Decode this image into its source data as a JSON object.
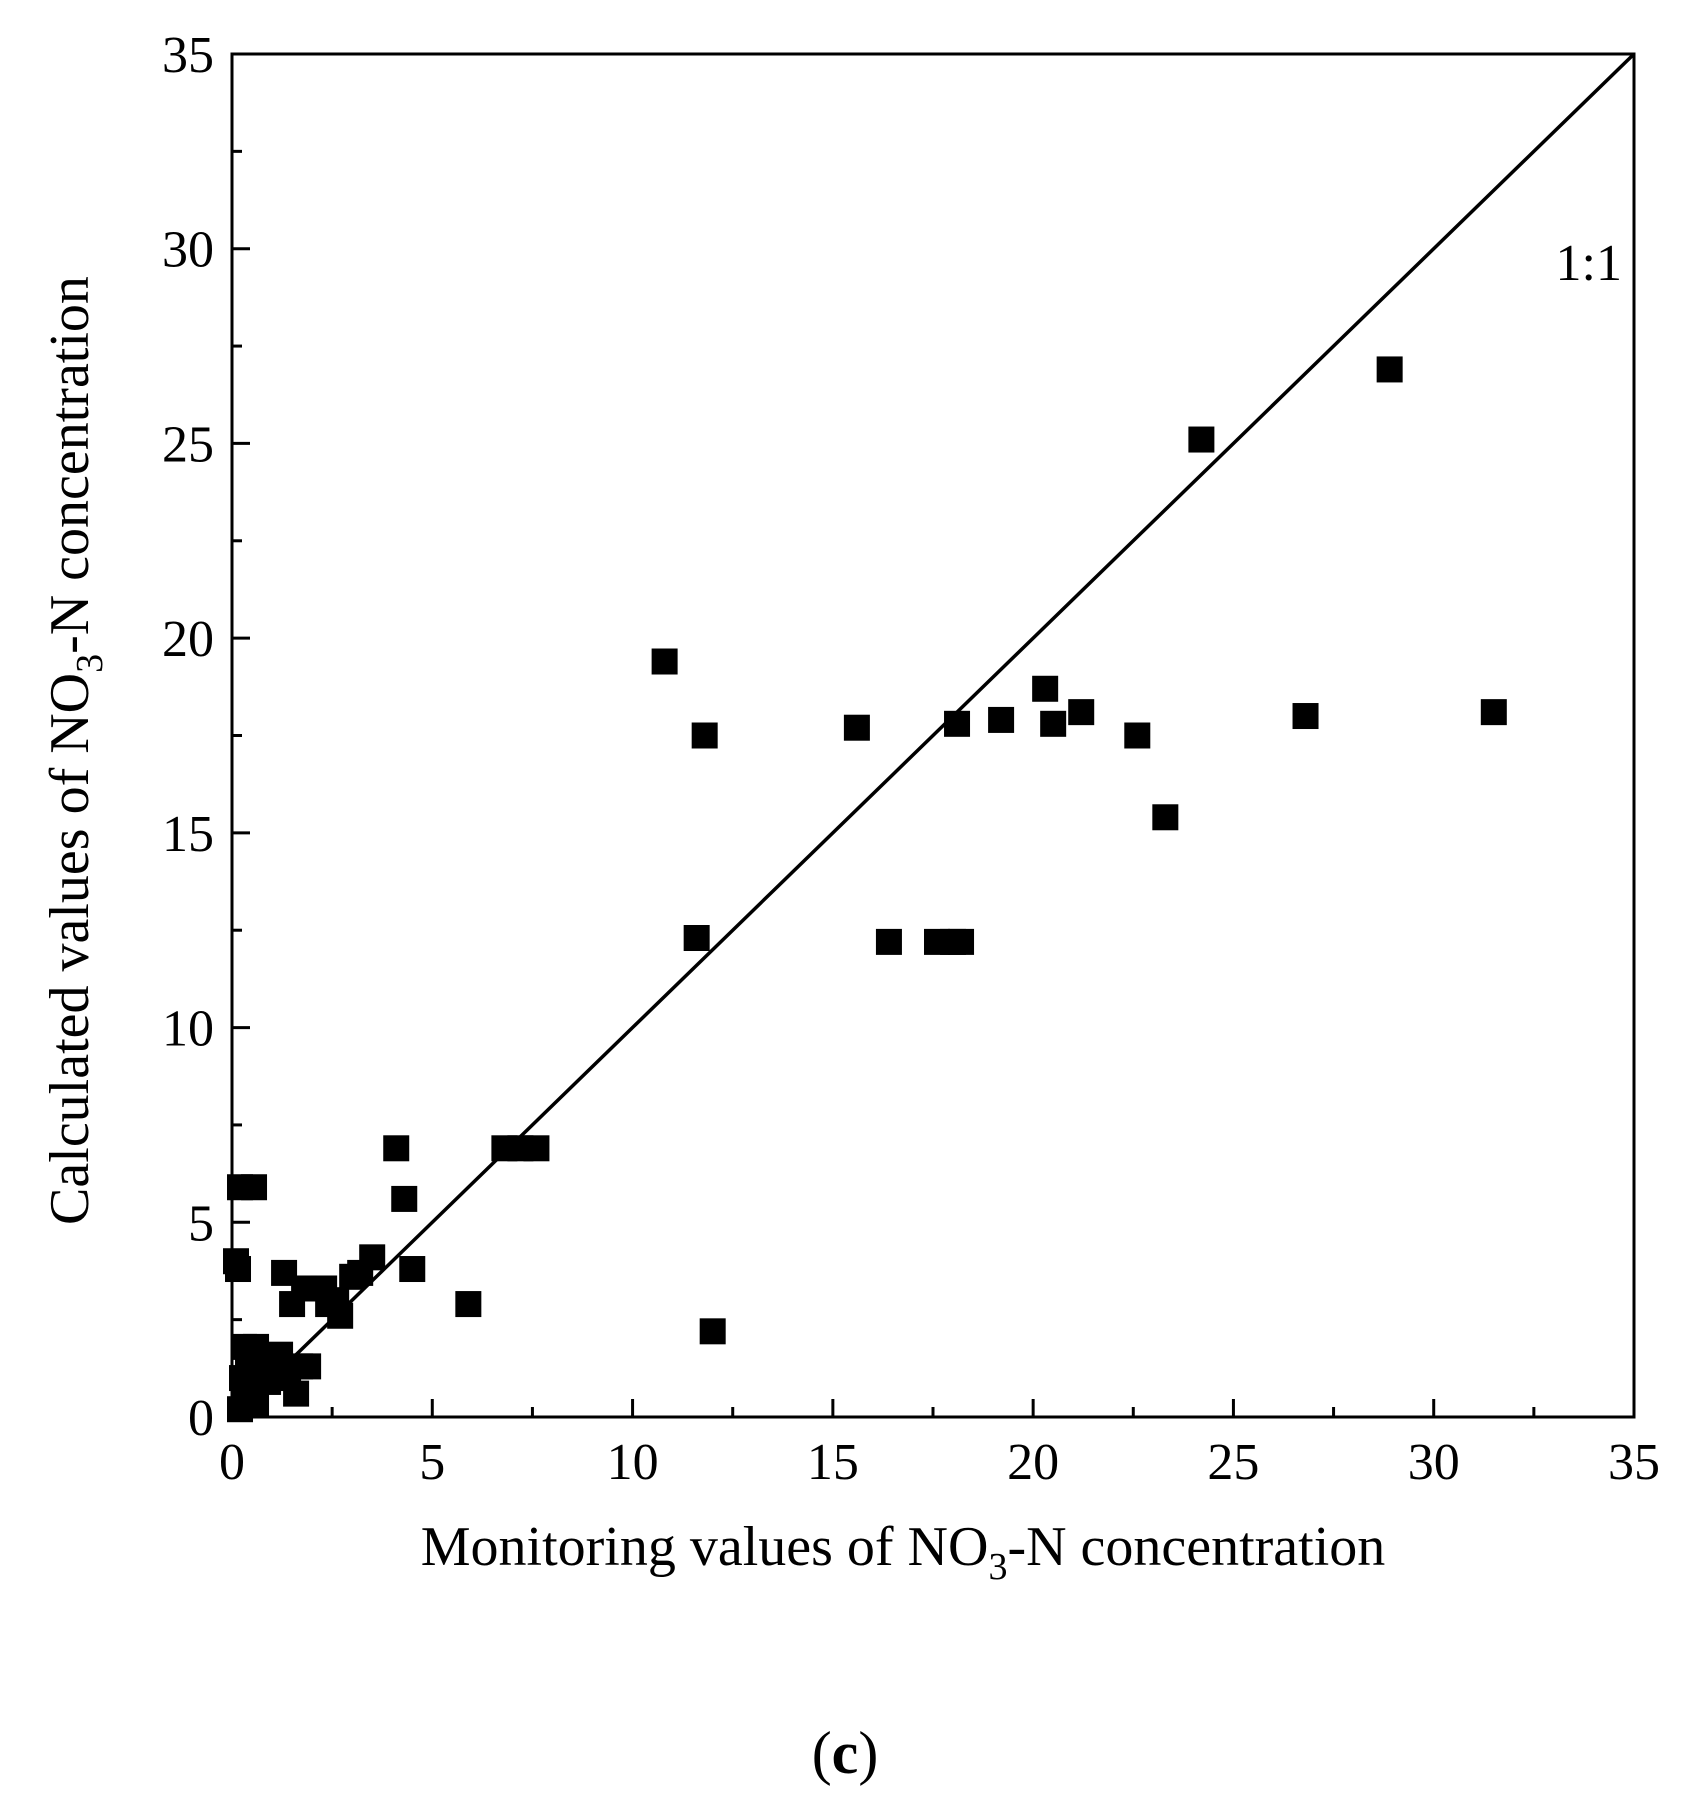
{
  "chart_data": {
    "type": "scatter",
    "title": "",
    "panel_label": {
      "open": "(",
      "letter": "c",
      "close": ")"
    },
    "xlabel": {
      "pre": "Monitoring values of NO",
      "sub": "3",
      "post": "-N concentration"
    },
    "ylabel": {
      "pre": "Calculated values of NO",
      "sub": "3",
      "post": "-N concentration"
    },
    "xlim": [
      0,
      35
    ],
    "ylim": [
      0,
      35
    ],
    "x_ticks": [
      0,
      5,
      10,
      15,
      20,
      25,
      30,
      35
    ],
    "y_ticks": [
      0,
      5,
      10,
      15,
      20,
      25,
      30,
      35
    ],
    "x_tick_labels": [
      "0",
      "5",
      "10",
      "15",
      "20",
      "25",
      "30",
      "35"
    ],
    "y_tick_labels": [
      "0",
      "5",
      "10",
      "15",
      "20",
      "25",
      "30",
      "35"
    ],
    "minor_tick_step": 2.5,
    "grid": false,
    "reference_line": {
      "label": "1:1",
      "from": [
        0,
        0
      ],
      "to": [
        35,
        35
      ]
    },
    "marker": "square",
    "color": "#000000",
    "series": [
      {
        "name": "NO3-N",
        "points": [
          [
            0.1,
            4.0
          ],
          [
            0.15,
            3.8
          ],
          [
            0.2,
            5.9
          ],
          [
            0.55,
            5.9
          ],
          [
            0.3,
            1.8
          ],
          [
            0.4,
            1.6
          ],
          [
            0.6,
            1.8
          ],
          [
            0.7,
            1.5
          ],
          [
            0.25,
            1.0
          ],
          [
            0.35,
            0.8
          ],
          [
            0.5,
            0.5
          ],
          [
            0.6,
            0.3
          ],
          [
            0.2,
            0.2
          ],
          [
            0.8,
            1.2
          ],
          [
            0.9,
            0.9
          ],
          [
            1.0,
            1.4
          ],
          [
            1.1,
            1.3
          ],
          [
            1.2,
            1.6
          ],
          [
            1.3,
            3.7
          ],
          [
            1.4,
            1.0
          ],
          [
            1.5,
            2.9
          ],
          [
            1.6,
            0.6
          ],
          [
            1.7,
            1.3
          ],
          [
            1.8,
            3.3
          ],
          [
            1.9,
            1.3
          ],
          [
            2.3,
            3.3
          ],
          [
            2.4,
            2.9
          ],
          [
            2.6,
            3.0
          ],
          [
            2.7,
            2.6
          ],
          [
            3.0,
            3.6
          ],
          [
            3.2,
            3.7
          ],
          [
            3.5,
            4.1
          ],
          [
            4.1,
            6.9
          ],
          [
            4.3,
            5.6
          ],
          [
            4.5,
            3.8
          ],
          [
            5.9,
            2.9
          ],
          [
            6.8,
            6.9
          ],
          [
            7.2,
            6.9
          ],
          [
            7.6,
            6.9
          ],
          [
            10.8,
            19.4
          ],
          [
            11.6,
            12.3
          ],
          [
            11.8,
            17.5
          ],
          [
            12.0,
            2.2
          ],
          [
            15.6,
            17.7
          ],
          [
            16.4,
            12.2
          ],
          [
            17.6,
            12.2
          ],
          [
            18.0,
            12.2
          ],
          [
            18.2,
            12.2
          ],
          [
            18.1,
            17.8
          ],
          [
            19.2,
            17.9
          ],
          [
            20.3,
            18.7
          ],
          [
            20.5,
            17.8
          ],
          [
            21.2,
            18.1
          ],
          [
            22.6,
            17.5
          ],
          [
            23.3,
            15.4
          ],
          [
            24.2,
            25.1
          ],
          [
            26.8,
            18.0
          ],
          [
            28.9,
            26.9
          ],
          [
            31.5,
            18.1
          ]
        ]
      }
    ]
  }
}
